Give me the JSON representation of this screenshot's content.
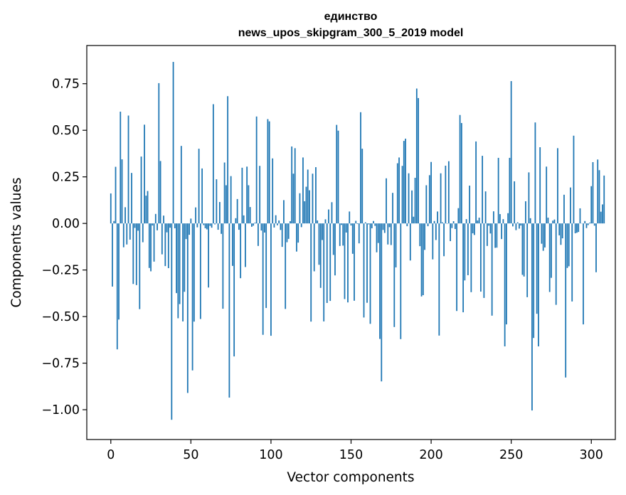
{
  "chart_data": {
    "type": "bar",
    "title": "единство",
    "subtitle": "news_upos_skipgram_300_5_2019 model",
    "xlabel": "Vector components",
    "ylabel": "Components values",
    "xlim": [
      -15,
      315
    ],
    "ylim": [
      -1.16,
      0.955
    ],
    "xticks": [
      0,
      50,
      100,
      150,
      200,
      250,
      300
    ],
    "yticks": [
      -1.0,
      -0.75,
      -0.5,
      -0.25,
      0.0,
      0.25,
      0.5,
      0.75
    ],
    "ytick_labels": [
      "−1.00",
      "−0.75",
      "−0.50",
      "−0.25",
      "0.00",
      "0.25",
      "0.50",
      "0.75"
    ],
    "xtick_labels": [
      "0",
      "50",
      "100",
      "150",
      "200",
      "250",
      "300"
    ],
    "bar_color": "#1f77b4",
    "grid": false,
    "values": [
      0.161,
      -0.339,
      0.013,
      0.304,
      -0.676,
      -0.516,
      0.6,
      0.344,
      -0.128,
      0.087,
      -0.113,
      0.579,
      -0.087,
      0.271,
      -0.325,
      -0.024,
      -0.331,
      -0.039,
      -0.46,
      0.359,
      -0.101,
      0.53,
      0.149,
      0.174,
      -0.239,
      -0.257,
      -0.011,
      -0.205,
      0.051,
      -0.037,
      0.753,
      0.335,
      -0.166,
      0.042,
      -0.229,
      -0.048,
      -0.24,
      -0.023,
      -1.054,
      0.867,
      -0.026,
      -0.374,
      -0.509,
      -0.433,
      0.416,
      -0.526,
      -0.367,
      -0.084,
      -0.91,
      -0.061,
      0.026,
      -0.789,
      -0.527,
      0.086,
      -0.021,
      0.401,
      -0.513,
      0.295,
      -0.009,
      -0.026,
      -0.032,
      -0.344,
      -0.013,
      -0.023,
      0.64,
      -0.005,
      0.237,
      -0.034,
      0.115,
      -0.056,
      -0.458,
      0.327,
      0.205,
      0.683,
      -0.935,
      0.254,
      -0.228,
      -0.714,
      0.028,
      0.131,
      -0.034,
      -0.294,
      0.299,
      0.043,
      -0.234,
      0.305,
      0.205,
      0.088,
      -0.018,
      -0.012,
      0.004,
      0.574,
      -0.121,
      0.309,
      -0.038,
      -0.598,
      -0.049,
      -0.454,
      0.56,
      0.548,
      -0.603,
      0.349,
      -0.022,
      0.044,
      -0.01,
      0.016,
      -0.035,
      -0.126,
      0.125,
      -0.459,
      -0.101,
      -0.083,
      0.012,
      0.413,
      0.267,
      0.404,
      -0.151,
      -0.103,
      0.162,
      -0.02,
      0.354,
      0.119,
      0.197,
      0.289,
      0.178,
      -0.527,
      0.267,
      -0.257,
      0.302,
      0.016,
      -0.222,
      -0.346,
      -0.089,
      -0.526,
      0.022,
      -0.427,
      0.075,
      -0.416,
      0.114,
      -0.169,
      -0.279,
      0.529,
      0.498,
      -0.121,
      -0.008,
      -0.119,
      -0.406,
      -0.049,
      -0.424,
      0.064,
      -0.011,
      -0.163,
      -0.415,
      0.014,
      -0.003,
      -0.107,
      0.597,
      0.401,
      -0.505,
      0.006,
      -0.426,
      -0.005,
      -0.539,
      -0.026,
      0.013,
      -0.013,
      -0.155,
      -0.105,
      -0.62,
      -0.848,
      -0.035,
      -0.051,
      0.242,
      -0.113,
      -0.02,
      -0.116,
      0.164,
      -0.556,
      -0.236,
      0.323,
      0.354,
      -0.621,
      0.309,
      0.443,
      0.455,
      -0.015,
      0.269,
      -0.199,
      0.177,
      0.036,
      0.245,
      0.724,
      0.673,
      -0.122,
      -0.392,
      -0.385,
      -0.142,
      0.205,
      -0.015,
      0.259,
      0.33,
      -0.193,
      0.013,
      -0.089,
      0.064,
      -0.602,
      0.269,
      0.006,
      -0.176,
      0.31,
      -0.002,
      0.334,
      -0.095,
      -0.025,
      0.012,
      -0.03,
      -0.47,
      0.082,
      0.582,
      0.539,
      -0.477,
      -0.306,
      0.023,
      -0.278,
      0.203,
      -0.369,
      -0.053,
      -0.062,
      0.44,
      0.016,
      0.031,
      -0.366,
      0.363,
      -0.4,
      0.172,
      -0.121,
      -0.012,
      -0.054,
      -0.495,
      0.065,
      -0.131,
      -0.13,
      0.352,
      0.05,
      -0.084,
      0.023,
      -0.66,
      -0.542,
      0.055,
      0.352,
      0.764,
      -0.016,
      0.226,
      -0.036,
      0.006,
      -0.028,
      -0.011,
      -0.276,
      -0.285,
      0.119,
      -0.396,
      0.274,
      0.028,
      -1.004,
      -0.615,
      0.542,
      -0.485,
      -0.66,
      0.409,
      -0.109,
      -0.147,
      -0.129,
      0.305,
      0.031,
      -0.368,
      -0.292,
      0.015,
      0.021,
      -0.437,
      0.404,
      -0.064,
      -0.115,
      -0.08,
      0.154,
      -0.827,
      -0.239,
      -0.23,
      0.193,
      -0.419,
      0.471,
      -0.053,
      -0.05,
      -0.046,
      0.081,
      0.001,
      -0.542,
      0.013,
      -0.025,
      -0.009,
      0.004,
      0.2,
      0.329,
      -0.012,
      -0.262,
      0.343,
      0.286,
      0.063,
      0.102,
      0.257
    ]
  }
}
